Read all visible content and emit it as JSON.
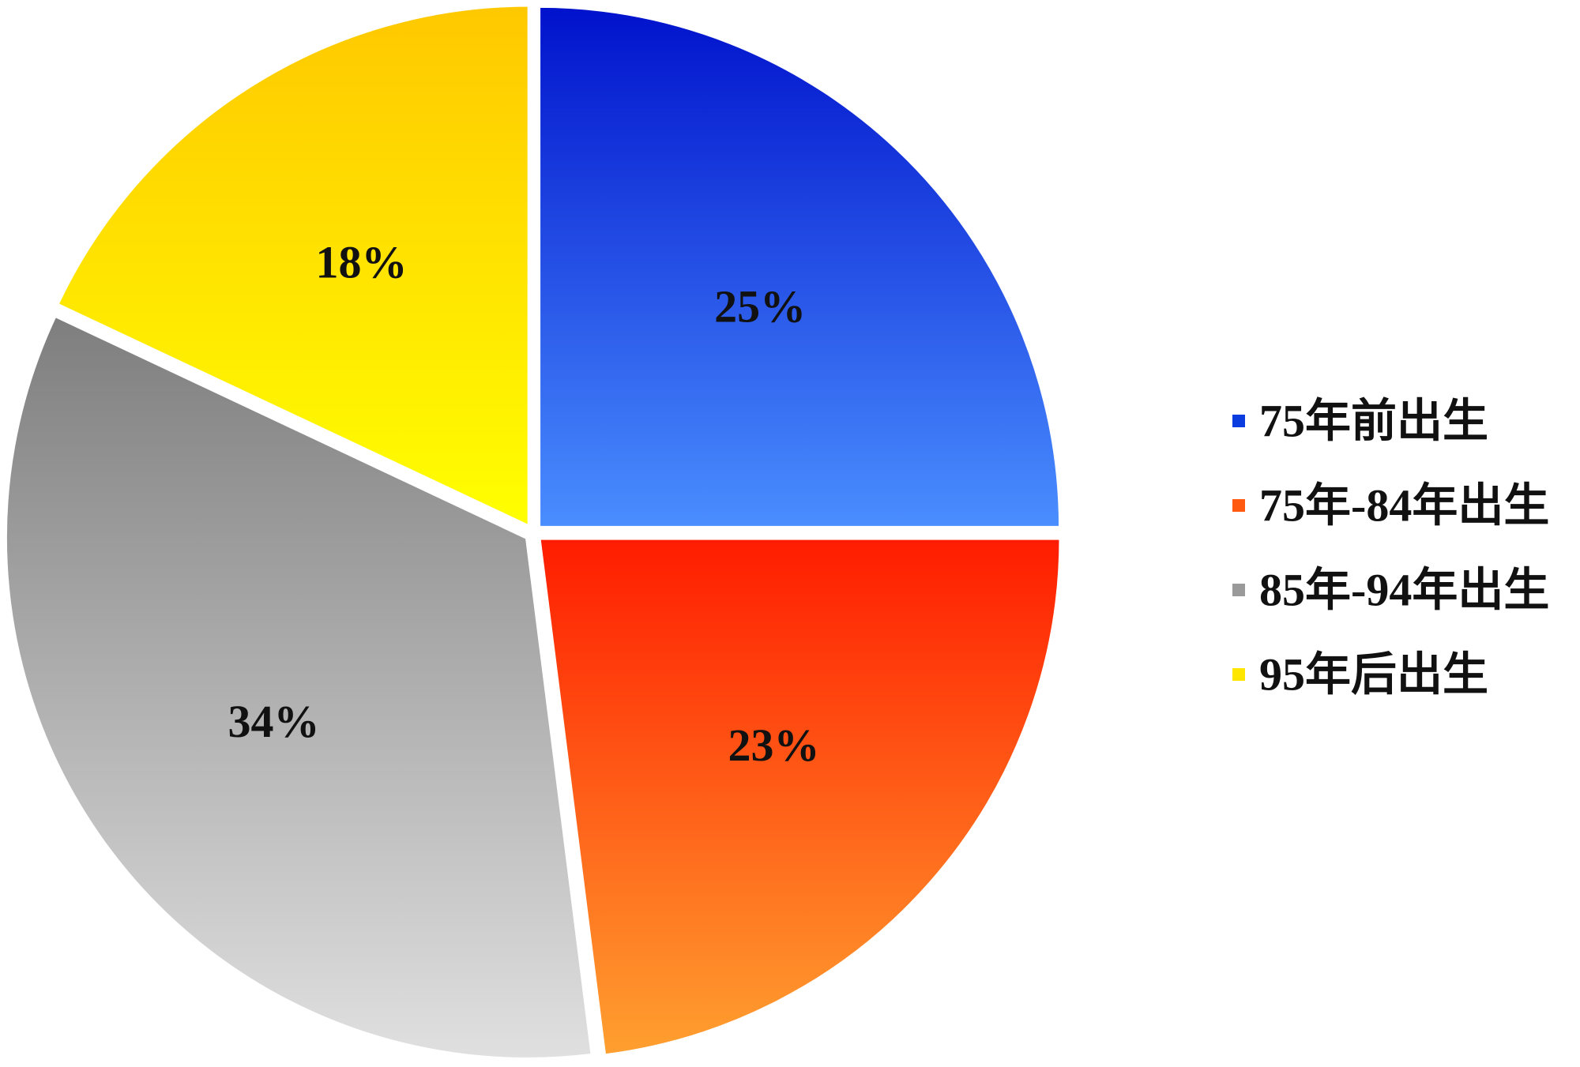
{
  "chart_data": {
    "type": "pie",
    "categories": [
      "75年前出生",
      "75年-84年出生",
      "85年-94年出生",
      "95年后出生"
    ],
    "values": [
      25,
      23,
      34,
      18
    ],
    "data_labels": [
      "25%",
      "23%",
      "34%",
      "18%"
    ],
    "start_angle_deg": 0,
    "direction": "clockwise",
    "exploded": true,
    "legend_position": "right",
    "colors": [
      {
        "top": "#0012CC",
        "bottom": "#4A8EFF"
      },
      {
        "top": "#FF1C00",
        "bottom": "#FFA030"
      },
      {
        "top": "#7E7E7E",
        "bottom": "#E0E0E0"
      },
      {
        "top": "#FFC800",
        "bottom": "#FFFF00"
      }
    ],
    "legend_colors": [
      "#0A3CE0",
      "#FF5A10",
      "#9A9A9A",
      "#FFE600"
    ]
  }
}
